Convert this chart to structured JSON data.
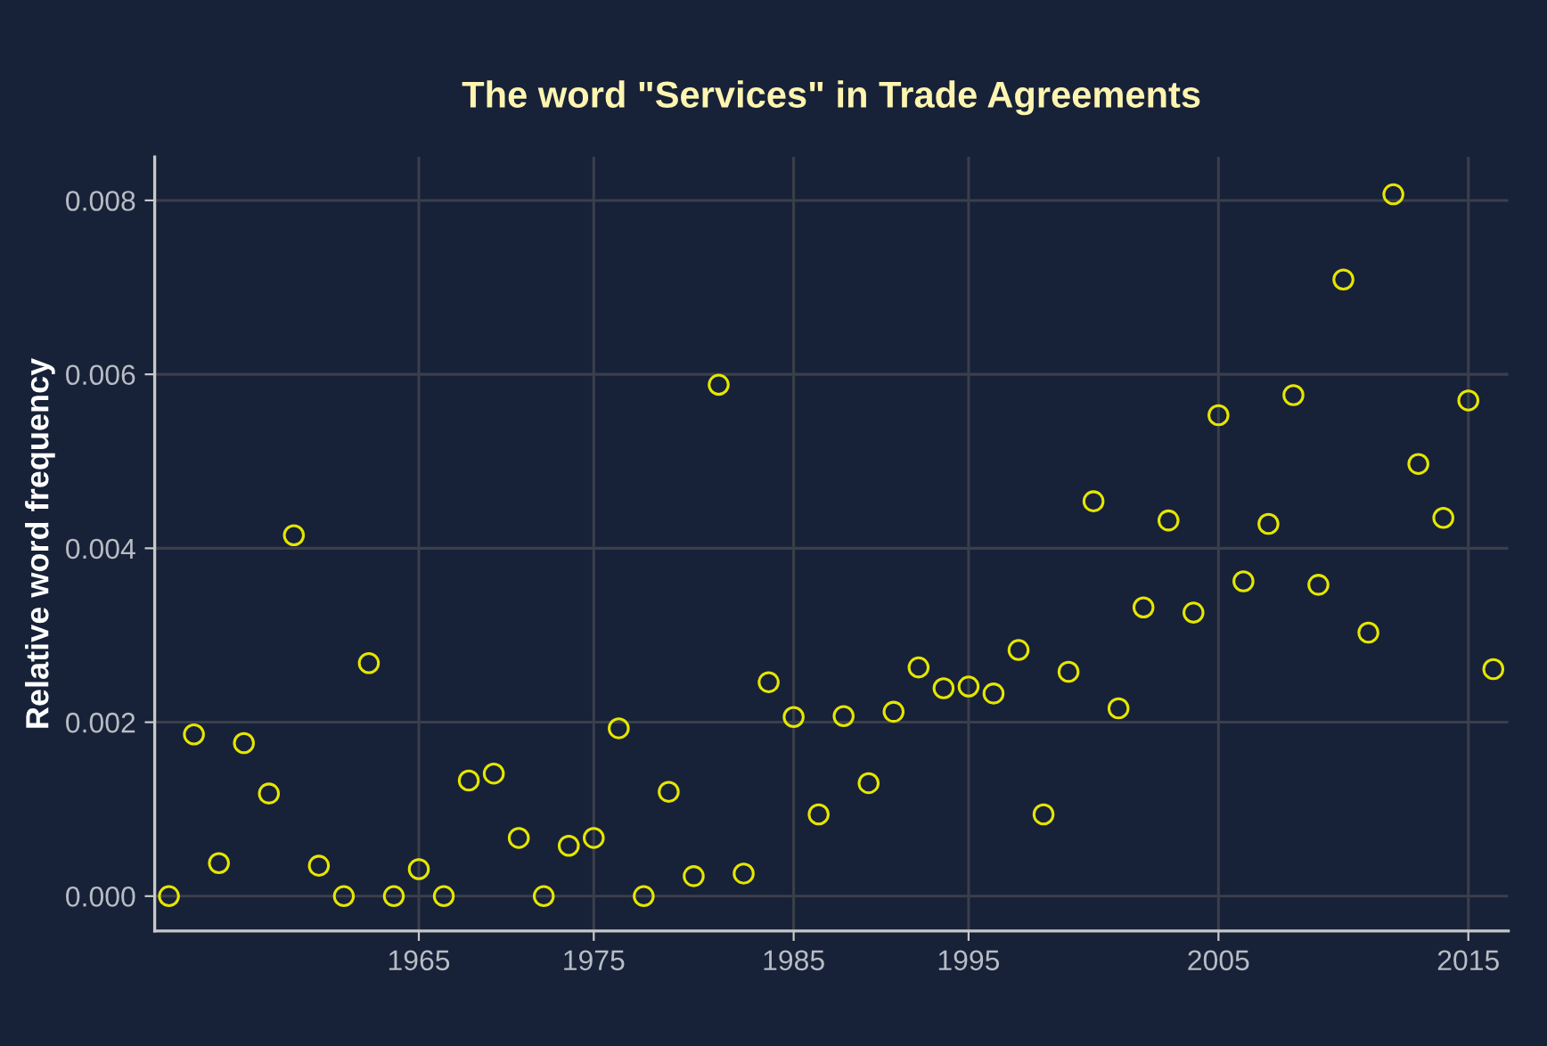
{
  "chart_data": {
    "type": "scatter",
    "title": "The word \"Services\" in Trade Agreements",
    "ylabel": "Relative word frequency",
    "categories": [
      null,
      null,
      null,
      null,
      null,
      null,
      null,
      null,
      null,
      null,
      "1965",
      null,
      null,
      null,
      null,
      null,
      null,
      "1975",
      null,
      null,
      null,
      null,
      null,
      null,
      null,
      "1985",
      null,
      null,
      null,
      null,
      null,
      null,
      "1995",
      null,
      null,
      null,
      null,
      null,
      null,
      null,
      null,
      null,
      "2005",
      null,
      null,
      null,
      null,
      null,
      null,
      null,
      null,
      null,
      "2015",
      null
    ],
    "series": [
      {
        "color": "#e6e600",
        "values": [
          0,
          0.00186,
          0.00038,
          0.00176,
          0.00118,
          0.00415,
          0.00035,
          0,
          0.00268,
          0,
          0.00031,
          0,
          0.00133,
          0.00141,
          0.00067,
          0,
          0.00058,
          0.00067,
          0.00193,
          0,
          0.0012,
          0.00023,
          0.00588,
          0.00026,
          0.00246,
          0.00206,
          0.00094,
          0.00207,
          0.0013,
          0.00212,
          0.00263,
          0.00239,
          0.00241,
          0.00233,
          0.00283,
          0.00094,
          0.00258,
          0.00454,
          0.00216,
          0.00332,
          0.00432,
          0.00326,
          0.00553,
          0.00362,
          0.00428,
          0.00576,
          0.00358,
          0.00709,
          0.00303,
          0.00807,
          0.00497,
          0.00435,
          0.0057,
          0.00261
        ]
      }
    ],
    "ylim": [
      -0.0004,
      0.0085
    ],
    "yticks": [
      {
        "value": 0,
        "label": "0.000"
      },
      {
        "value": 0.002,
        "label": "0.002"
      },
      {
        "value": 0.004,
        "label": "0.004"
      },
      {
        "value": 0.006,
        "label": "0.006"
      },
      {
        "value": 0.008,
        "label": "0.008"
      }
    ],
    "grid": true,
    "marker": "circle",
    "legend": false
  }
}
